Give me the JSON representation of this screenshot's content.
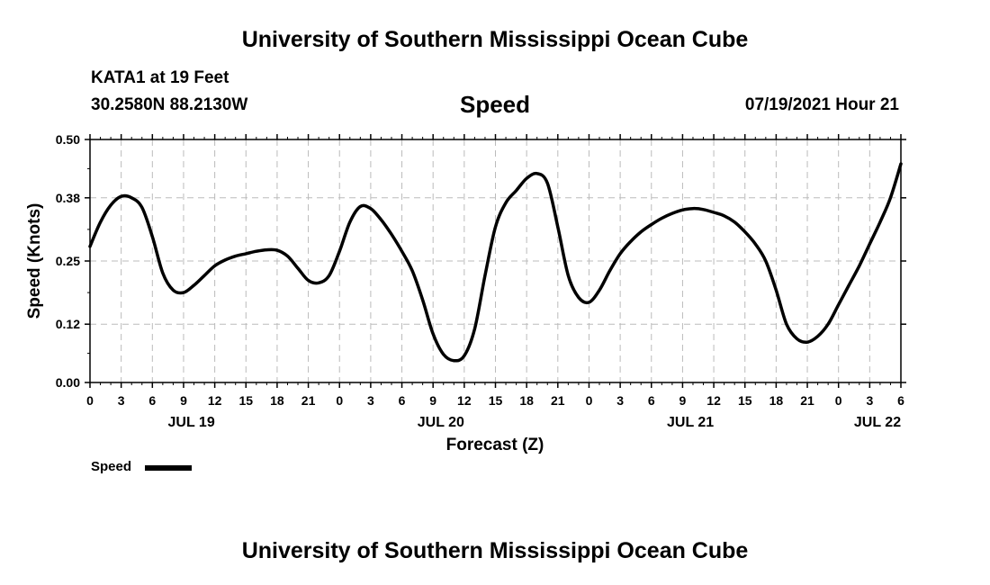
{
  "header": {
    "title_top": "University of Southern Mississippi Ocean Cube",
    "station": "KATA1 at 19 Feet",
    "coords": "30.2580N  88.2130W",
    "chart_title": "Speed",
    "datetime": "07/19/2021 Hour 21"
  },
  "footer": {
    "title_bottom": "University of Southern Mississippi Ocean Cube"
  },
  "legend": {
    "label": "Speed",
    "color": "#000000"
  },
  "chart_data": {
    "type": "line",
    "title": "Speed",
    "xlabel": "Forecast (Z)",
    "ylabel": "Speed (Knots)",
    "xlim": [
      0,
      78
    ],
    "ylim": [
      0.0,
      0.5
    ],
    "yticks": [
      0.0,
      0.12,
      0.25,
      0.38,
      0.5
    ],
    "ytick_labels": [
      "0.00",
      "0.12",
      "0.25",
      "0.38",
      "0.50"
    ],
    "xticks": [
      0,
      3,
      6,
      9,
      12,
      15,
      18,
      21,
      24,
      27,
      30,
      33,
      36,
      39,
      42,
      45,
      48,
      51,
      54,
      57,
      60,
      63,
      66,
      69,
      72,
      75,
      78
    ],
    "xtick_labels": [
      "0",
      "3",
      "6",
      "9",
      "12",
      "15",
      "18",
      "21",
      "0",
      "3",
      "6",
      "9",
      "12",
      "15",
      "18",
      "21",
      "0",
      "3",
      "6",
      "9",
      "12",
      "15",
      "18",
      "21",
      "0",
      "3",
      "6"
    ],
    "date_labels": [
      {
        "x": 9.75,
        "label": "JUL 19"
      },
      {
        "x": 33.75,
        "label": "JUL 20"
      },
      {
        "x": 57.75,
        "label": "JUL 21"
      },
      {
        "x": 75.75,
        "label": "JUL 22"
      }
    ],
    "grid": true,
    "series": [
      {
        "name": "Speed",
        "x": [
          0,
          1,
          2,
          3,
          4,
          5,
          6,
          7,
          8,
          9,
          10,
          11,
          12,
          13,
          14,
          15,
          16,
          17,
          18,
          19,
          20,
          21,
          22,
          23,
          24,
          25,
          26,
          27,
          28,
          29,
          30,
          31,
          32,
          33,
          34,
          35,
          36,
          37,
          38,
          39,
          40,
          41,
          42,
          43,
          44,
          45,
          46,
          47,
          48,
          49,
          50,
          51,
          52,
          53,
          54,
          55,
          56,
          57,
          58,
          59,
          60,
          61,
          62,
          63,
          64,
          65,
          66,
          67,
          68,
          69,
          70,
          71,
          72,
          73,
          74,
          75,
          76,
          77,
          78
        ],
        "values": [
          0.28,
          0.33,
          0.365,
          0.383,
          0.38,
          0.36,
          0.3,
          0.225,
          0.19,
          0.185,
          0.2,
          0.22,
          0.24,
          0.252,
          0.26,
          0.265,
          0.27,
          0.273,
          0.272,
          0.26,
          0.235,
          0.21,
          0.205,
          0.22,
          0.27,
          0.33,
          0.362,
          0.358,
          0.335,
          0.305,
          0.27,
          0.23,
          0.17,
          0.1,
          0.058,
          0.045,
          0.055,
          0.11,
          0.22,
          0.32,
          0.37,
          0.395,
          0.42,
          0.43,
          0.41,
          0.32,
          0.22,
          0.175,
          0.165,
          0.19,
          0.23,
          0.265,
          0.29,
          0.31,
          0.325,
          0.338,
          0.348,
          0.355,
          0.358,
          0.356,
          0.35,
          0.343,
          0.33,
          0.31,
          0.285,
          0.25,
          0.19,
          0.12,
          0.09,
          0.083,
          0.095,
          0.12,
          0.16,
          0.2,
          0.24,
          0.285,
          0.33,
          0.38,
          0.45
        ]
      }
    ]
  }
}
